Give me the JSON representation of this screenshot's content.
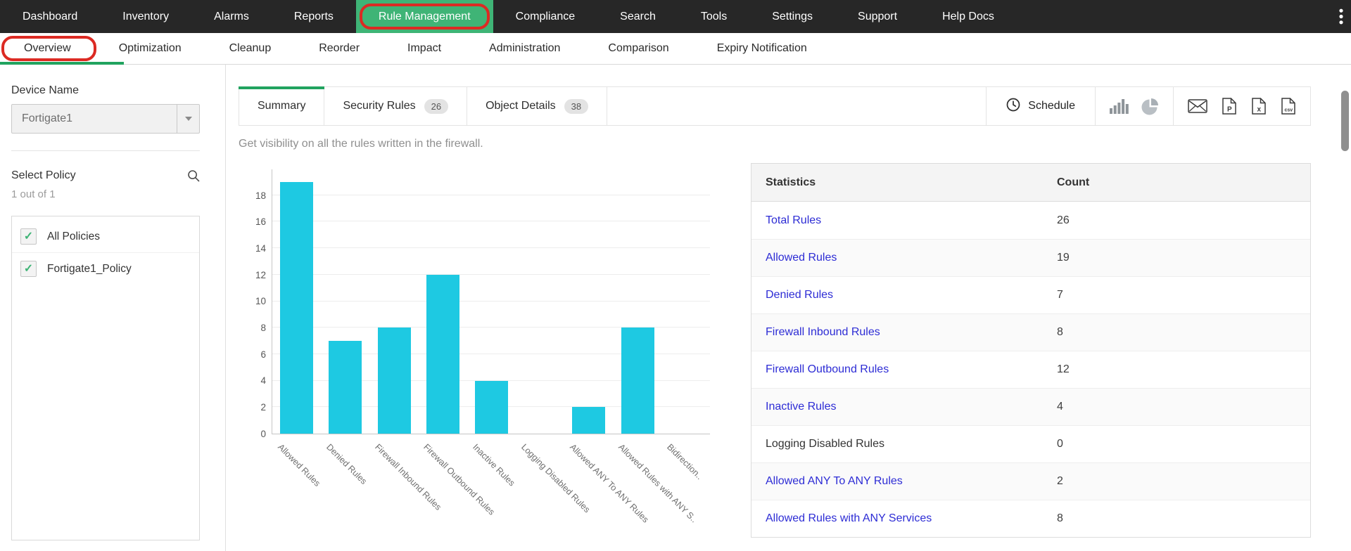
{
  "colors": {
    "nav_active_green": "#3fb476",
    "accent_green": "#21a35f",
    "annotation_red": "#dc2a23",
    "bar_cyan": "#1ec9e2",
    "link_blue": "#2d2cd5"
  },
  "top_nav": {
    "items": [
      {
        "label": "Dashboard"
      },
      {
        "label": "Inventory"
      },
      {
        "label": "Alarms"
      },
      {
        "label": "Reports"
      },
      {
        "label": "Rule Management",
        "active": true,
        "annotated": true
      },
      {
        "label": "Compliance"
      },
      {
        "label": "Search"
      },
      {
        "label": "Tools"
      },
      {
        "label": "Settings"
      },
      {
        "label": "Support"
      },
      {
        "label": "Help Docs"
      }
    ],
    "overflow_menu_icon": "kebab-menu-icon"
  },
  "sub_nav": {
    "items": [
      {
        "label": "Overview",
        "active": true,
        "annotated": true
      },
      {
        "label": "Optimization"
      },
      {
        "label": "Cleanup"
      },
      {
        "label": "Reorder"
      },
      {
        "label": "Impact"
      },
      {
        "label": "Administration"
      },
      {
        "label": "Comparison"
      },
      {
        "label": "Expiry Notification"
      }
    ]
  },
  "sidebar": {
    "device_name_label": "Device Name",
    "device_select_value": "Fortigate1",
    "device_select_caret_icon": "caret-down-icon",
    "select_policy_label": "Select Policy",
    "search_icon": "search-icon",
    "policy_count": "1 out of 1",
    "policies": [
      {
        "label": "All Policies",
        "checked": true
      },
      {
        "label": "Fortigate1_Policy",
        "checked": true
      }
    ]
  },
  "toolbar": {
    "tabs": [
      {
        "label": "Summary",
        "active": true
      },
      {
        "label": "Security Rules",
        "badge": "26"
      },
      {
        "label": "Object Details",
        "badge": "38"
      }
    ],
    "schedule_label": "Schedule",
    "schedule_icon": "clock-icon",
    "view_icons": [
      "bar-chart-icon",
      "pie-chart-icon"
    ],
    "export_icons": [
      "mail-icon",
      "pdf-export-icon",
      "excel-export-icon",
      "csv-export-icon"
    ]
  },
  "main": {
    "description": "Get visibility on all the rules written in the firewall."
  },
  "chart_data": {
    "type": "bar",
    "categories": [
      "Allowed Rules",
      "Denied Rules",
      "Firewall Inbound Rules",
      "Firewall Outbound Rules",
      "Inactive Rules",
      "Logging Disabled Rules",
      "Allowed ANY To ANY Rules",
      "Allowed Rules with ANY S..",
      "Bidirection.."
    ],
    "values": [
      19,
      7,
      8,
      12,
      4,
      0,
      2,
      8,
      0
    ],
    "title": "",
    "xlabel": "",
    "ylabel": "",
    "ylim": [
      0,
      20
    ],
    "yticks": [
      0,
      2,
      4,
      6,
      8,
      10,
      12,
      14,
      16,
      18
    ],
    "grid": true,
    "legend": false,
    "bar_color": "#1ec9e2"
  },
  "stats_table": {
    "headers": [
      "Statistics",
      "Count"
    ],
    "rows": [
      {
        "label": "Total Rules",
        "count": "26",
        "link": true
      },
      {
        "label": "Allowed Rules",
        "count": "19",
        "link": true
      },
      {
        "label": "Denied Rules",
        "count": "7",
        "link": true
      },
      {
        "label": "Firewall Inbound Rules",
        "count": "8",
        "link": true
      },
      {
        "label": "Firewall Outbound Rules",
        "count": "12",
        "link": true
      },
      {
        "label": "Inactive Rules",
        "count": "4",
        "link": true
      },
      {
        "label": "Logging Disabled Rules",
        "count": "0",
        "link": false
      },
      {
        "label": "Allowed ANY To ANY Rules",
        "count": "2",
        "link": true
      },
      {
        "label": "Allowed Rules with ANY Services",
        "count": "8",
        "link": true
      }
    ]
  }
}
